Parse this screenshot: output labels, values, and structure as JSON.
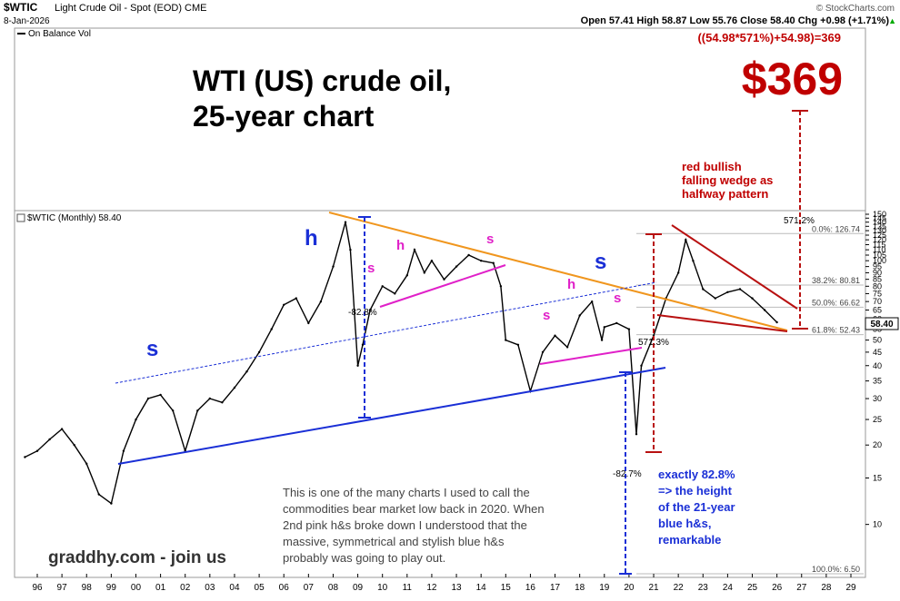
{
  "header": {
    "symbol": "$WTIC",
    "name": "Light Crude Oil - Spot (EOD) CME",
    "date": "8-Jan-2026",
    "copyright": "© StockCharts.com",
    "ohlc": "Open 57.41  High 58.87  Low 55.76  Close 58.40  Chg +0.98 (+1.71%)",
    "chg_arrow": "▲",
    "indicator_label": "On Balance Vol",
    "chart_label": "$WTIC (Monthly) 58.40",
    "last_price": "58.40"
  },
  "callouts": {
    "formula": "((54.98*571%)+54.98)=369",
    "target": "$369",
    "title_line1": "WTI (US) crude oil,",
    "title_line2": "25-year chart",
    "wedge_line1": "red bullish",
    "wedge_line2": "falling wedge as",
    "wedge_line3": "halfway pattern",
    "pct_571_top": "571.2%",
    "pct_571_mid": "571.3%",
    "pct_828": "-82.8%",
    "pct_827": "-82.7%",
    "height_line1": "exactly 82.8%",
    "height_line2": "=> the height",
    "height_line3": "of the 21-year",
    "height_line4": "blue h&s,",
    "height_line5": "remarkable",
    "note_line1": "This is one of the many charts I used to call the",
    "note_line2": "commodities bear market low back in 2020.  When",
    "note_line3": "2nd pink h&s broke down I understood that the",
    "note_line4": "massive, symmetrical and stylish blue h&s",
    "note_line5": "probably was going to play out.",
    "footer": "graddhy.com - join us"
  },
  "chart_data": {
    "type": "line",
    "title": "$WTIC (Monthly) 58.40",
    "y_scale": "log",
    "ylim": [
      6.5,
      150
    ],
    "y_ticks": [
      10,
      15,
      20,
      25,
      30,
      35,
      40,
      45,
      50,
      55,
      60,
      65,
      70,
      75,
      80,
      85,
      90,
      95,
      100,
      105,
      110,
      115,
      120,
      125,
      130,
      135,
      140,
      145,
      150
    ],
    "x_ticks": [
      "96",
      "97",
      "98",
      "99",
      "00",
      "01",
      "02",
      "03",
      "04",
      "05",
      "06",
      "07",
      "08",
      "09",
      "10",
      "11",
      "12",
      "13",
      "14",
      "15",
      "16",
      "17",
      "18",
      "19",
      "20",
      "21",
      "22",
      "23",
      "24",
      "25",
      "26",
      "27",
      "28",
      "29"
    ],
    "grid": false,
    "fib_levels": [
      {
        "label": "0.0%: 126.74",
        "value": 126.74
      },
      {
        "label": "38.2%: 80.81",
        "value": 80.81
      },
      {
        "label": "50.0%: 66.62",
        "value": 66.62
      },
      {
        "label": "61.8%: 52.43",
        "value": 52.43
      },
      {
        "label": "100.0%: 6.50",
        "value": 6.5
      }
    ],
    "series": [
      {
        "x": [
          1995.5,
          1996.0,
          1996.5,
          1997.0,
          1997.5,
          1998.0,
          1998.5,
          1999.0,
          1999.5,
          2000.0,
          2000.5,
          2001.0,
          2001.5,
          2002.0,
          2002.5,
          2003.0,
          2003.5,
          2004.0,
          2004.5,
          2005.0,
          2005.5,
          2006.0,
          2006.5,
          2007.0,
          2007.5,
          2008.0,
          2008.5,
          2008.7,
          2009.0,
          2009.2,
          2009.5,
          2010.0,
          2010.5,
          2011.0,
          2011.3,
          2011.7,
          2012.0,
          2012.5,
          2013.0,
          2013.5,
          2014.0,
          2014.5,
          2014.8,
          2015.0,
          2015.5,
          2016.0,
          2016.5,
          2017.0,
          2017.5,
          2018.0,
          2018.5,
          2018.9,
          2019.0,
          2019.5,
          2020.0,
          2020.3,
          2020.5,
          2021.0,
          2021.5,
          2022.0,
          2022.3,
          2022.6,
          2023.0,
          2023.5,
          2024.0,
          2024.5,
          2025.0,
          2025.5,
          2026.0
        ],
        "values": [
          18,
          19,
          21,
          23,
          20,
          17,
          13,
          12,
          19,
          25,
          30,
          31,
          27,
          19,
          27,
          30,
          29,
          33,
          38,
          45,
          55,
          68,
          72,
          58,
          70,
          95,
          140,
          110,
          40,
          48,
          65,
          80,
          75,
          88,
          110,
          90,
          100,
          85,
          95,
          105,
          100,
          98,
          80,
          50,
          48,
          32,
          45,
          52,
          47,
          62,
          70,
          50,
          56,
          58,
          55,
          22,
          40,
          52,
          72,
          90,
          120,
          100,
          78,
          72,
          76,
          78,
          72,
          65,
          58.4
        ]
      }
    ]
  }
}
